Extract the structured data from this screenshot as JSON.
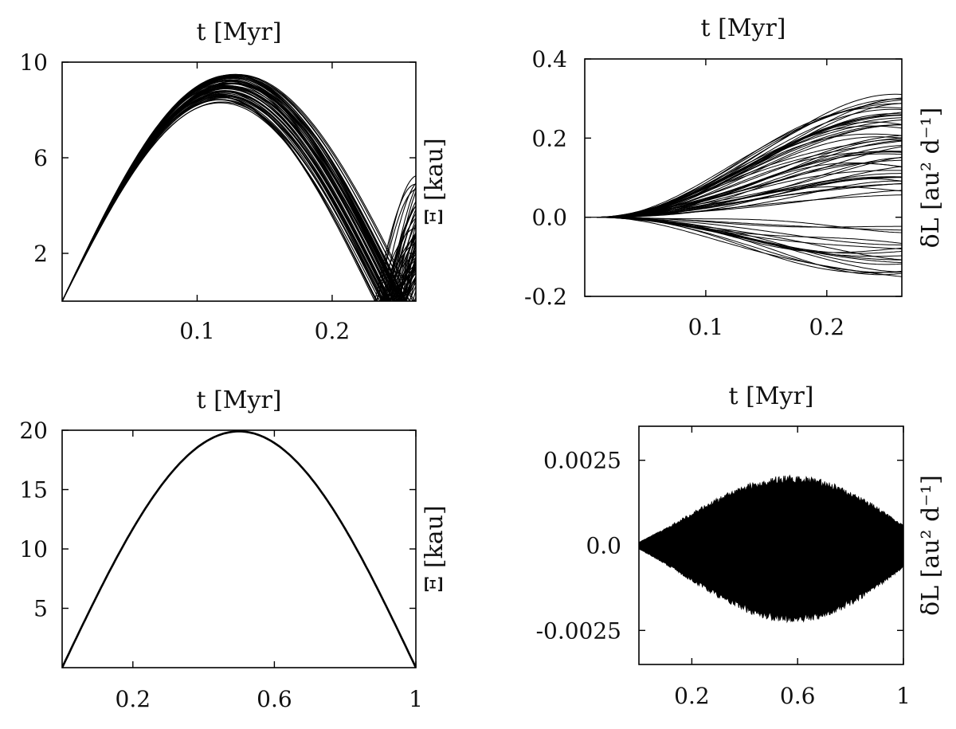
{
  "chart_data": [
    {
      "id": "top-left",
      "type": "line",
      "title": "t [Myr]",
      "ylabel": "Ξ [kau]",
      "xlim": [
        0,
        0.262
      ],
      "ylim": [
        0,
        10
      ],
      "xticks": [
        {
          "v": 0.1,
          "label": "0.1"
        },
        {
          "v": 0.2,
          "label": "0.2"
        }
      ],
      "yticks": [
        {
          "v": 2,
          "label": "2"
        },
        {
          "v": 6,
          "label": "6"
        },
        {
          "v": 10,
          "label": "10"
        }
      ],
      "line_color": "#000000",
      "bundle": {
        "curves": 60,
        "peak_min": 8.2,
        "peak_max": 9.4,
        "end_min": 0.228,
        "end_max": 0.262,
        "rebound": true
      }
    },
    {
      "id": "top-right",
      "type": "line",
      "title": "t [Myr]",
      "ylabel": "δL [au² d⁻¹]",
      "xlim": [
        0,
        0.262
      ],
      "ylim": [
        -0.2,
        0.4
      ],
      "xticks": [
        {
          "v": 0.1,
          "label": "0.1"
        },
        {
          "v": 0.2,
          "label": "0.2"
        }
      ],
      "yticks": [
        {
          "v": -0.2,
          "label": "-0.2"
        },
        {
          "v": 0.0,
          "label": "0.0"
        },
        {
          "v": 0.2,
          "label": "0.2"
        },
        {
          "v": 0.4,
          "label": "0.4"
        }
      ],
      "line_color": "#000000",
      "bundle": {
        "curves": 70,
        "max_upper": 0.31,
        "max_lower": -0.16
      }
    },
    {
      "id": "bottom-left",
      "type": "line",
      "title": "t [Myr]",
      "ylabel": "Ξ [kau]",
      "xlim": [
        0,
        1
      ],
      "ylim": [
        0,
        20
      ],
      "xticks": [
        {
          "v": 0.2,
          "label": "0.2"
        },
        {
          "v": 0.6,
          "label": "0.6"
        },
        {
          "v": 1,
          "label": "1"
        }
      ],
      "yticks": [
        {
          "v": 5,
          "label": "5"
        },
        {
          "v": 10,
          "label": "10"
        },
        {
          "v": 15,
          "label": "15"
        },
        {
          "v": 20,
          "label": "20"
        }
      ],
      "line_color": "#000000",
      "curve": {
        "peak": 19.9,
        "peak_x": 0.5
      }
    },
    {
      "id": "bottom-right",
      "type": "area",
      "title": "t [Myr]",
      "ylabel": "δL [au² d⁻¹]",
      "xlim": [
        0,
        1
      ],
      "ylim": [
        -0.0035,
        0.0035
      ],
      "xticks": [
        {
          "v": 0.2,
          "label": "0.2"
        },
        {
          "v": 0.6,
          "label": "0.6"
        },
        {
          "v": 1,
          "label": "1"
        }
      ],
      "yticks": [
        {
          "v": -0.0025,
          "label": "-0.0025"
        },
        {
          "v": 0.0,
          "label": "0.0"
        },
        {
          "v": 0.0025,
          "label": "0.0025"
        }
      ],
      "fill_color": "#000000",
      "envelope": {
        "max_amplitude": 0.0021,
        "peak_x": 0.7
      }
    }
  ]
}
